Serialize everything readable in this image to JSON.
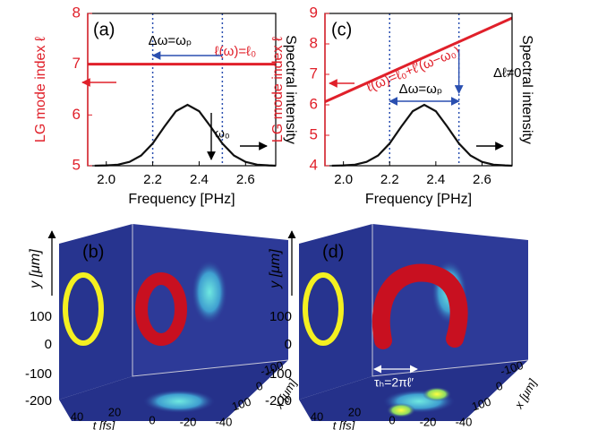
{
  "chart_data": [
    {
      "type": "line",
      "annotations": [
        "(a)",
        "Δω=ωₚ",
        "ℓ(ω)=ℓ₀",
        "ω₀"
      ],
      "y_label": "LG mode index ℓ",
      "y2_label": "Spectral intensity",
      "x_label": "Frequency [PHz]",
      "xlim": [
        1.92,
        2.73
      ],
      "xticks": [
        {
          "value": 2,
          "label": "2.0"
        },
        2.2,
        2.4,
        2.6
      ],
      "ylim": [
        5,
        8
      ],
      "yticks": [
        5,
        6,
        7,
        8
      ],
      "y2lim": [
        0,
        1
      ],
      "vlines": [
        2.2,
        2.5
      ],
      "series": [
        {
          "color": "#e0202a",
          "x": [
            1.92,
            2.73
          ],
          "values": [
            7,
            7
          ]
        },
        {
          "color": "#111111",
          "axis": "y2",
          "x": [
            1.95,
            2.0,
            2.05,
            2.1,
            2.15,
            2.2,
            2.25,
            2.3,
            2.35,
            2.4,
            2.45,
            2.5,
            2.55,
            2.6,
            2.65,
            2.7,
            2.75
          ],
          "values": [
            0.0003,
            0.002,
            0.007,
            0.025,
            0.067,
            0.146,
            0.256,
            0.358,
            0.4,
            0.358,
            0.256,
            0.146,
            0.067,
            0.025,
            0.007,
            0.002,
            0.0003
          ]
        }
      ]
    },
    {
      "type": "line",
      "annotations": [
        "(c)",
        "ℓ(ω)=ℓ₀+ℓ′(ω−ω₀)",
        "Δℓ≠0",
        "Δω=ωₚ"
      ],
      "y_label": "LG mode index ℓ",
      "y2_label": "Spectral intensity",
      "x_label": "Frequency [PHz]",
      "xlim": [
        1.92,
        2.73
      ],
      "xticks": [
        {
          "value": 2,
          "label": "2.0"
        },
        2.2,
        2.4,
        2.6
      ],
      "ylim": [
        4,
        9
      ],
      "yticks": [
        4,
        5,
        6,
        7,
        8,
        9
      ],
      "y2lim": [
        0,
        1
      ],
      "vlines": [
        2.2,
        2.5
      ],
      "series": [
        {
          "color": "#e0202a",
          "x": [
            1.92,
            2.73
          ],
          "values": [
            6.1,
            8.85
          ]
        },
        {
          "color": "#111111",
          "axis": "y2",
          "x": [
            1.95,
            2.0,
            2.05,
            2.1,
            2.15,
            2.2,
            2.25,
            2.3,
            2.35,
            2.4,
            2.45,
            2.5,
            2.55,
            2.6,
            2.65,
            2.7,
            2.75
          ],
          "values": [
            0.0003,
            0.002,
            0.007,
            0.025,
            0.067,
            0.146,
            0.256,
            0.358,
            0.4,
            0.358,
            0.256,
            0.146,
            0.067,
            0.025,
            0.007,
            0.002,
            0.0003
          ]
        }
      ]
    }
  ],
  "panels": [
    {
      "label": "(b)",
      "y_label": "y [μm]",
      "t_label": "t [fs]",
      "x_label": "x [μm]",
      "y_ticks": [
        "100",
        "0",
        "-100",
        "-200"
      ],
      "t_ticks": [
        "40",
        "20",
        "0",
        "-20",
        "-40"
      ],
      "x_ticks": [
        "-100",
        "0",
        "100"
      ]
    },
    {
      "label": "(d)",
      "y_label": "y [μm]",
      "t_label": "t [fs]",
      "x_label": "x [μm]",
      "y_ticks": [
        "100",
        "0",
        "-100",
        "-200"
      ],
      "t_ticks": [
        "40",
        "20",
        "0",
        "-20",
        "-40"
      ],
      "x_ticks": [
        "-100",
        "0",
        "100"
      ],
      "annotation": "τₕ=2πℓ′"
    }
  ]
}
